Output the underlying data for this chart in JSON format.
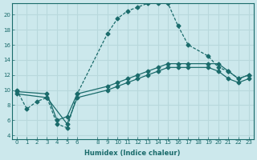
{
  "xlabel": "Humidex (Indice chaleur)",
  "bg_color": "#cce8ec",
  "grid_color": "#b8d8dc",
  "line_color": "#1a6b6b",
  "xlim": [
    -0.5,
    23.5
  ],
  "ylim": [
    3.5,
    21.5
  ],
  "yticks": [
    4,
    6,
    8,
    10,
    12,
    14,
    16,
    18,
    20
  ],
  "xticks": [
    0,
    1,
    2,
    3,
    4,
    5,
    6,
    8,
    9,
    10,
    11,
    12,
    13,
    14,
    15,
    16,
    17,
    18,
    19,
    20,
    21,
    22,
    23
  ],
  "curve1_x": [
    0,
    1,
    2,
    3,
    4,
    5,
    6,
    9,
    10,
    11,
    12,
    13,
    14,
    15,
    16,
    17,
    19,
    20,
    21,
    22,
    23
  ],
  "curve1_y": [
    10,
    7.5,
    8.5,
    9.0,
    5.5,
    5.0,
    9.5,
    17.5,
    19.5,
    20.5,
    21.0,
    21.5,
    21.5,
    21.5,
    18.5,
    16.0,
    14.5,
    13.0,
    12.5,
    11.5,
    12.0
  ],
  "curve2_x": [
    0,
    3,
    4,
    5,
    6,
    9,
    10,
    11,
    12,
    13,
    14,
    15,
    16,
    17,
    19,
    20,
    21,
    22,
    23
  ],
  "curve2_y": [
    9.8,
    9.5,
    6.0,
    6.5,
    9.5,
    10.5,
    11.0,
    11.5,
    12.0,
    12.5,
    13.0,
    13.5,
    13.5,
    13.5,
    13.5,
    13.5,
    12.5,
    11.5,
    12.0
  ],
  "curve3_x": [
    0,
    3,
    5,
    6,
    9,
    10,
    11,
    12,
    13,
    14,
    15,
    16,
    17,
    19,
    20,
    21,
    22,
    23
  ],
  "curve3_y": [
    9.5,
    9.0,
    5.5,
    9.0,
    10.0,
    10.5,
    11.0,
    11.5,
    12.0,
    12.5,
    13.0,
    13.0,
    13.0,
    13.0,
    12.5,
    11.5,
    11.0,
    11.5
  ]
}
